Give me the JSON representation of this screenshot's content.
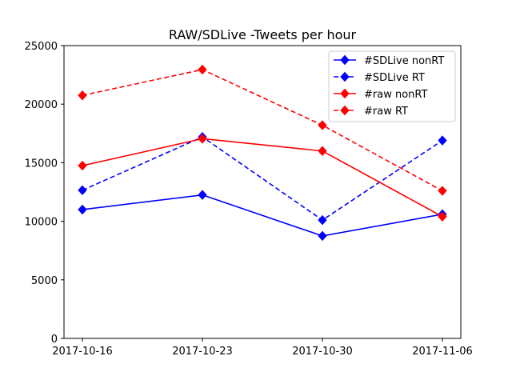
{
  "chart_data": {
    "type": "line",
    "title": "RAW/SDLive -Tweets per hour",
    "xlabel": "",
    "ylabel": "",
    "x": [
      "2017-10-16",
      "2017-10-23",
      "2017-10-30",
      "2017-11-06"
    ],
    "ylim": [
      0,
      25000
    ],
    "yticks": [
      0,
      5000,
      10000,
      15000,
      20000,
      25000
    ],
    "grid": false,
    "legend_position": "top-right",
    "series": [
      {
        "name": "#SDLive nonRT",
        "color": "#0000ff",
        "dashed": false,
        "marker": "diamond",
        "values": [
          11000,
          12250,
          8750,
          10600
        ]
      },
      {
        "name": "#SDLive RT",
        "color": "#0000ff",
        "dashed": true,
        "marker": "diamond",
        "values": [
          12650,
          17200,
          10100,
          16900
        ]
      },
      {
        "name": "#raw nonRT",
        "color": "#ff0000",
        "dashed": false,
        "marker": "diamond",
        "values": [
          14750,
          17050,
          16000,
          10400
        ]
      },
      {
        "name": "#raw RT",
        "color": "#ff0000",
        "dashed": true,
        "marker": "diamond",
        "values": [
          20750,
          22950,
          18200,
          12600
        ]
      }
    ]
  }
}
